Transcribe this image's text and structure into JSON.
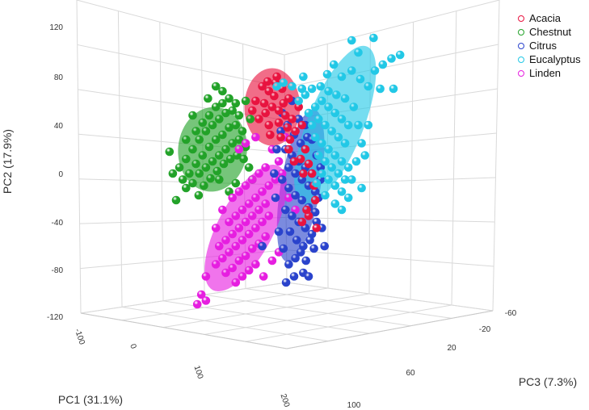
{
  "chart_data": {
    "type": "scatter",
    "projection": "3d",
    "axes": {
      "x": {
        "label": "PC1 (31.1%)",
        "ticks": [
          "-100",
          "0",
          "100",
          "200"
        ]
      },
      "y": {
        "label": "PC2 (17.9%)",
        "ticks": [
          "120",
          "80",
          "40",
          "0",
          "-40",
          "-80",
          "-120"
        ]
      },
      "z": {
        "label": "PC3 (7.3%)",
        "ticks": [
          "-60",
          "-20",
          "20",
          "60",
          "100"
        ]
      }
    },
    "legend_position": "top-right",
    "grid": true,
    "confidence_ellipses": true,
    "series": [
      {
        "name": "Acacia",
        "color": "#e8133f",
        "ellipse": {
          "cx": 45,
          "cy": 55,
          "rx": 42,
          "ry": 32,
          "rot": 0
        },
        "points": [
          [
            20,
            60
          ],
          [
            30,
            72
          ],
          [
            40,
            68
          ],
          [
            50,
            75
          ],
          [
            60,
            70
          ],
          [
            70,
            62
          ],
          [
            35,
            50
          ],
          [
            45,
            55
          ],
          [
            55,
            52
          ],
          [
            65,
            48
          ],
          [
            25,
            45
          ],
          [
            40,
            40
          ],
          [
            55,
            42
          ],
          [
            48,
            64
          ],
          [
            62,
            58
          ],
          [
            33,
            58
          ],
          [
            75,
            45
          ],
          [
            80,
            35
          ],
          [
            58,
            30
          ],
          [
            68,
            38
          ],
          [
            42,
            32
          ],
          [
            85,
            55
          ],
          [
            90,
            40
          ],
          [
            52,
            80
          ],
          [
            38,
            76
          ],
          [
            72,
            28
          ],
          [
            95,
            20
          ],
          [
            88,
            12
          ],
          [
            100,
            8
          ],
          [
            105,
            0
          ],
          [
            110,
            -22
          ],
          [
            100,
            -35
          ],
          [
            90,
            -40
          ],
          [
            112,
            -45
          ],
          [
            97,
            -30
          ],
          [
            108,
            -10
          ],
          [
            92,
            0
          ],
          [
            78,
            10
          ],
          [
            70,
            20
          ],
          [
            15,
            52
          ]
        ]
      },
      {
        "name": "Chestnut",
        "color": "#22a228",
        "ellipse": {
          "cx": -45,
          "cy": 20,
          "rx": 52,
          "ry": 35,
          "rot": 6
        },
        "points": [
          [
            -95,
            5
          ],
          [
            -85,
            12
          ],
          [
            -75,
            20
          ],
          [
            -65,
            28
          ],
          [
            -55,
            35
          ],
          [
            -45,
            40
          ],
          [
            -35,
            45
          ],
          [
            -25,
            50
          ],
          [
            -15,
            52
          ],
          [
            -5,
            48
          ],
          [
            -90,
            -5
          ],
          [
            -80,
            0
          ],
          [
            -70,
            8
          ],
          [
            -60,
            15
          ],
          [
            -50,
            22
          ],
          [
            -40,
            28
          ],
          [
            -30,
            32
          ],
          [
            -20,
            38
          ],
          [
            -10,
            40
          ],
          [
            0,
            35
          ],
          [
            -85,
            -12
          ],
          [
            -75,
            -8
          ],
          [
            -65,
            0
          ],
          [
            -55,
            5
          ],
          [
            -45,
            10
          ],
          [
            -35,
            15
          ],
          [
            -25,
            20
          ],
          [
            -15,
            25
          ],
          [
            -5,
            28
          ],
          [
            5,
            22
          ],
          [
            -70,
            35
          ],
          [
            -60,
            42
          ],
          [
            -50,
            48
          ],
          [
            -40,
            55
          ],
          [
            -30,
            58
          ],
          [
            -20,
            62
          ],
          [
            -10,
            58
          ],
          [
            -58,
            -10
          ],
          [
            -48,
            -4
          ],
          [
            -38,
            2
          ],
          [
            -28,
            8
          ],
          [
            -18,
            12
          ],
          [
            -8,
            15
          ],
          [
            2,
            12
          ],
          [
            10,
            5
          ],
          [
            15,
            -5
          ],
          [
            -100,
            -22
          ],
          [
            -105,
            0
          ],
          [
            -40,
            72
          ],
          [
            -30,
            68
          ],
          [
            -52,
            62
          ],
          [
            -20,
            -15
          ],
          [
            -10,
            -8
          ],
          [
            -66,
            -18
          ],
          [
            -35,
            -5
          ],
          [
            5,
            60
          ],
          [
            12,
            45
          ],
          [
            -75,
            48
          ],
          [
            -85,
            28
          ],
          [
            -110,
            18
          ]
        ]
      },
      {
        "name": "Citrus",
        "color": "#2a43cc",
        "ellipse": {
          "cx": 88,
          "cy": -10,
          "rx": 30,
          "ry": 64,
          "rot": 10
        },
        "points": [
          [
            65,
            20
          ],
          [
            75,
            15
          ],
          [
            85,
            10
          ],
          [
            95,
            5
          ],
          [
            105,
            0
          ],
          [
            70,
            5
          ],
          [
            80,
            0
          ],
          [
            90,
            -5
          ],
          [
            100,
            -10
          ],
          [
            110,
            -15
          ],
          [
            60,
            -5
          ],
          [
            70,
            -12
          ],
          [
            80,
            -18
          ],
          [
            90,
            -22
          ],
          [
            100,
            -28
          ],
          [
            110,
            -32
          ],
          [
            65,
            -30
          ],
          [
            75,
            -35
          ],
          [
            85,
            -40
          ],
          [
            95,
            -45
          ],
          [
            105,
            -50
          ],
          [
            72,
            -48
          ],
          [
            82,
            -55
          ],
          [
            92,
            -60
          ],
          [
            102,
            -55
          ],
          [
            112,
            -40
          ],
          [
            115,
            -20
          ],
          [
            118,
            5
          ],
          [
            98,
            30
          ],
          [
            88,
            25
          ],
          [
            78,
            32
          ],
          [
            68,
            40
          ],
          [
            58,
            35
          ],
          [
            62,
            -62
          ],
          [
            70,
            -75
          ],
          [
            80,
            -70
          ],
          [
            88,
            -65
          ],
          [
            96,
            -72
          ],
          [
            120,
            -45
          ],
          [
            108,
            -62
          ],
          [
            55,
            -48
          ],
          [
            50,
            -20
          ],
          [
            48,
            0
          ],
          [
            52,
            20
          ],
          [
            60,
            50
          ],
          [
            85,
            45
          ],
          [
            95,
            40
          ],
          [
            105,
            28
          ],
          [
            112,
            15
          ],
          [
            118,
            -5
          ],
          [
            92,
            -82
          ],
          [
            78,
            -85
          ],
          [
            66,
            -90
          ],
          [
            100,
            -85
          ],
          [
            124,
            -60
          ],
          [
            30,
            -60
          ],
          [
            75,
            60
          ]
        ]
      },
      {
        "name": "Eucalyptus",
        "color": "#22c8e6",
        "ellipse": {
          "cx": 140,
          "cy": 40,
          "rx": 42,
          "ry": 70,
          "rot": 22
        },
        "points": [
          [
            100,
            50
          ],
          [
            110,
            55
          ],
          [
            120,
            60
          ],
          [
            130,
            55
          ],
          [
            140,
            50
          ],
          [
            150,
            45
          ],
          [
            160,
            40
          ],
          [
            105,
            40
          ],
          [
            115,
            45
          ],
          [
            125,
            40
          ],
          [
            135,
            35
          ],
          [
            145,
            30
          ],
          [
            155,
            25
          ],
          [
            110,
            30
          ],
          [
            120,
            25
          ],
          [
            130,
            20
          ],
          [
            140,
            15
          ],
          [
            150,
            10
          ],
          [
            160,
            5
          ],
          [
            115,
            15
          ],
          [
            125,
            10
          ],
          [
            135,
            5
          ],
          [
            145,
            0
          ],
          [
            155,
            -5
          ],
          [
            120,
            0
          ],
          [
            130,
            -5
          ],
          [
            140,
            -10
          ],
          [
            150,
            -15
          ],
          [
            95,
            65
          ],
          [
            105,
            70
          ],
          [
            118,
            72
          ],
          [
            130,
            68
          ],
          [
            142,
            65
          ],
          [
            155,
            62
          ],
          [
            168,
            55
          ],
          [
            175,
            40
          ],
          [
            180,
            25
          ],
          [
            172,
            10
          ],
          [
            165,
            -5
          ],
          [
            160,
            -20
          ],
          [
            150,
            -30
          ],
          [
            140,
            -25
          ],
          [
            125,
            -18
          ],
          [
            112,
            -8
          ],
          [
            150,
            80
          ],
          [
            165,
            85
          ],
          [
            178,
            78
          ],
          [
            190,
            72
          ],
          [
            200,
            85
          ],
          [
            212,
            90
          ],
          [
            225,
            95
          ],
          [
            238,
            98
          ],
          [
            208,
            70
          ],
          [
            228,
            70
          ],
          [
            185,
            15
          ],
          [
            180,
            -12
          ],
          [
            90,
            70
          ],
          [
            85,
            60
          ],
          [
            75,
            72
          ],
          [
            62,
            75
          ],
          [
            52,
            72
          ],
          [
            92,
            80
          ],
          [
            165,
            110
          ],
          [
            175,
            100
          ],
          [
            198,
            112
          ],
          [
            138,
            90
          ],
          [
            128,
            82
          ],
          [
            190,
            40
          ]
        ]
      },
      {
        "name": "Linden",
        "color": "#e61ee0",
        "ellipse": {
          "cx": 5,
          "cy": -45,
          "rx": 42,
          "ry": 58,
          "rot": 28
        },
        "points": [
          [
            -35,
            -60
          ],
          [
            -25,
            -55
          ],
          [
            -15,
            -50
          ],
          [
            -5,
            -45
          ],
          [
            5,
            -40
          ],
          [
            15,
            -35
          ],
          [
            25,
            -30
          ],
          [
            35,
            -25
          ],
          [
            -40,
            -75
          ],
          [
            -30,
            -70
          ],
          [
            -20,
            -65
          ],
          [
            -10,
            -60
          ],
          [
            0,
            -55
          ],
          [
            10,
            -50
          ],
          [
            20,
            -45
          ],
          [
            30,
            -40
          ],
          [
            40,
            -35
          ],
          [
            -25,
            -82
          ],
          [
            -15,
            -78
          ],
          [
            -5,
            -72
          ],
          [
            5,
            -68
          ],
          [
            15,
            -62
          ],
          [
            25,
            -58
          ],
          [
            35,
            -52
          ],
          [
            -10,
            -90
          ],
          [
            0,
            -85
          ],
          [
            10,
            -80
          ],
          [
            20,
            -75
          ],
          [
            -20,
            -40
          ],
          [
            -10,
            -35
          ],
          [
            0,
            -30
          ],
          [
            10,
            -25
          ],
          [
            20,
            -20
          ],
          [
            30,
            -15
          ],
          [
            40,
            -10
          ],
          [
            -15,
            -20
          ],
          [
            -5,
            -15
          ],
          [
            5,
            -10
          ],
          [
            15,
            -5
          ],
          [
            25,
            0
          ],
          [
            35,
            5
          ],
          [
            -55,
            -85
          ],
          [
            -62,
            -100
          ],
          [
            -55,
            -105
          ],
          [
            -68,
            -108
          ],
          [
            45,
            -72
          ],
          [
            55,
            -65
          ],
          [
            50,
            -5
          ],
          [
            60,
            0
          ],
          [
            70,
            -20
          ],
          [
            80,
            -30
          ],
          [
            -5,
            20
          ],
          [
            5,
            25
          ],
          [
            20,
            30
          ],
          [
            -30,
            -30
          ],
          [
            -40,
            -45
          ],
          [
            45,
            20
          ],
          [
            55,
            10
          ],
          [
            65,
            30
          ],
          [
            32,
            -85
          ]
        ]
      }
    ]
  }
}
